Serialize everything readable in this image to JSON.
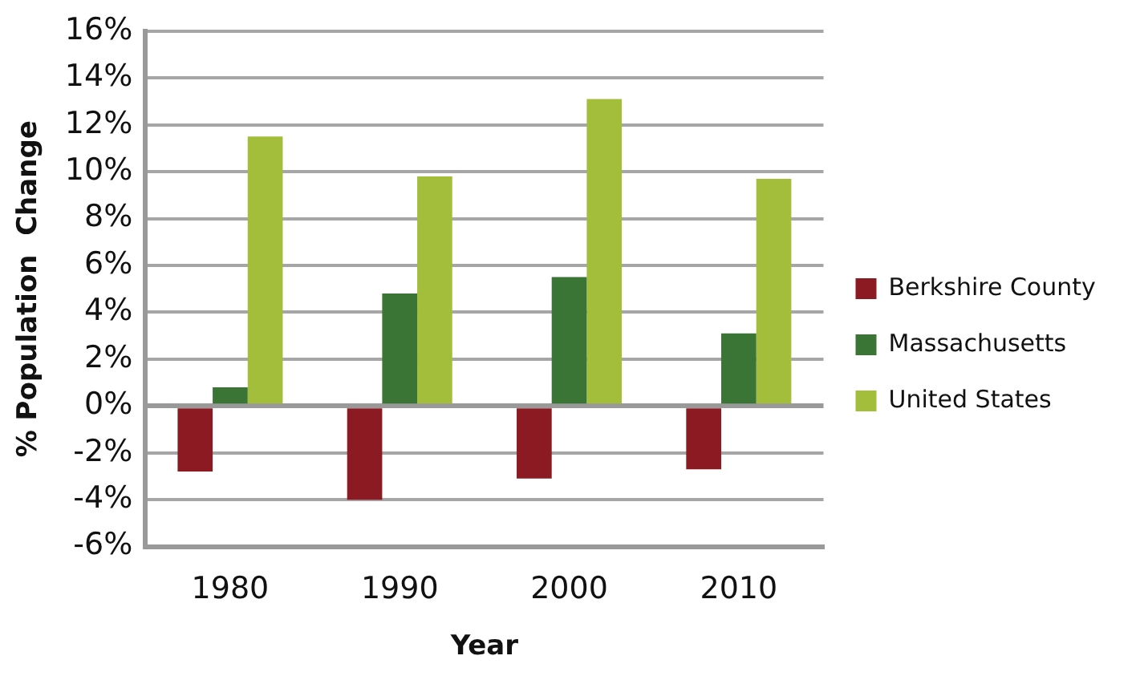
{
  "chart_data": {
    "type": "bar",
    "xlabel": "Year",
    "ylabel": "% Population  Change",
    "categories": [
      "1980",
      "1990",
      "2000",
      "2010"
    ],
    "series": [
      {
        "name": "Berkshire County",
        "color": "#8b1a22",
        "values": [
          -2.8,
          -4.0,
          -3.1,
          -2.7
        ]
      },
      {
        "name": "Massachusetts",
        "color": "#3b7536",
        "values": [
          0.8,
          4.8,
          5.5,
          3.1
        ]
      },
      {
        "name": "United States",
        "color": "#a2be3b",
        "values": [
          11.5,
          9.8,
          13.1,
          9.7
        ]
      }
    ],
    "ylim": [
      -6,
      16
    ],
    "yticks": [
      {
        "value": -6,
        "label": "-6%"
      },
      {
        "value": -4,
        "label": "-4%"
      },
      {
        "value": -2,
        "label": "-2%"
      },
      {
        "value": 0,
        "label": "0%"
      },
      {
        "value": 2,
        "label": "2%"
      },
      {
        "value": 4,
        "label": "4%"
      },
      {
        "value": 6,
        "label": "6%"
      },
      {
        "value": 8,
        "label": "8%"
      },
      {
        "value": 10,
        "label": "10%"
      },
      {
        "value": 12,
        "label": "12%"
      },
      {
        "value": 14,
        "label": "14%"
      },
      {
        "value": 16,
        "label": "16%"
      }
    ],
    "grid": "y",
    "legend": "right"
  }
}
